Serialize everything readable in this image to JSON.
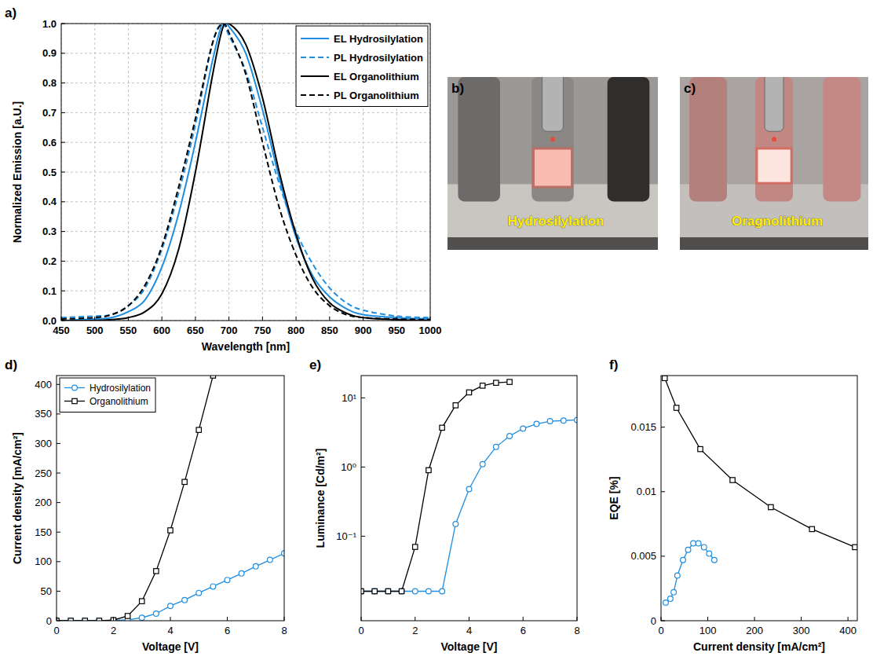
{
  "chart_data": [
    {
      "panel": "a)",
      "type": "line",
      "x_label": "Wavelength [nm]",
      "y_label": "Normalized Emission [a.U.]",
      "x": [
        450,
        500,
        525,
        550,
        575,
        600,
        625,
        650,
        675,
        690,
        700,
        725,
        750,
        775,
        800,
        825,
        850,
        875,
        900,
        950,
        1000
      ],
      "xlim": [
        450,
        1000
      ],
      "xticks": [
        450,
        500,
        550,
        600,
        650,
        700,
        750,
        800,
        850,
        900,
        950,
        1000
      ],
      "ylim": [
        0,
        1
      ],
      "yticks": [
        {
          "value": 0,
          "label": "0.0"
        },
        0.1,
        0.2,
        0.3,
        0.4,
        0.5,
        0.6,
        0.7,
        0.8,
        0.9,
        {
          "value": 1,
          "label": "1.0"
        }
      ],
      "grid": true,
      "legend": "top-right",
      "series": [
        {
          "name": "EL Hydrosilylation",
          "color": "#1f8ee0",
          "line_style": "solid",
          "values": [
            0.0,
            0.005,
            0.01,
            0.03,
            0.07,
            0.18,
            0.36,
            0.6,
            0.87,
            1.0,
            0.99,
            0.9,
            0.71,
            0.48,
            0.28,
            0.15,
            0.08,
            0.04,
            0.02,
            0.01,
            0.005
          ]
        },
        {
          "name": "PL Hydrosilylation",
          "color": "#1f8ee0",
          "line_style": "dashed",
          "values": [
            0.01,
            0.015,
            0.02,
            0.05,
            0.11,
            0.24,
            0.43,
            0.66,
            0.93,
            1.0,
            0.96,
            0.84,
            0.65,
            0.46,
            0.3,
            0.19,
            0.11,
            0.06,
            0.035,
            0.015,
            0.01
          ]
        },
        {
          "name": "EL Organolithium",
          "color": "#000000",
          "line_style": "solid",
          "values": [
            0,
            0,
            0.003,
            0.01,
            0.03,
            0.09,
            0.24,
            0.5,
            0.82,
            0.98,
            1.0,
            0.93,
            0.75,
            0.5,
            0.29,
            0.14,
            0.06,
            0.025,
            0.01,
            0.003,
            0
          ]
        },
        {
          "name": "PL Organolithium",
          "color": "#000000",
          "line_style": "dashed",
          "values": [
            0.005,
            0.01,
            0.02,
            0.05,
            0.12,
            0.25,
            0.45,
            0.68,
            0.93,
            1.0,
            0.97,
            0.83,
            0.6,
            0.38,
            0.22,
            0.11,
            0.05,
            0.02,
            0.01,
            0.005,
            0.003
          ]
        }
      ]
    },
    {
      "panel": "d)",
      "type": "line",
      "x_label": "Voltage [V]",
      "y_label": "Current density [mA/cm²]",
      "xlim": [
        0,
        8
      ],
      "xticks": [
        0,
        2,
        4,
        6,
        8
      ],
      "ylim": [
        0,
        415
      ],
      "yticks": [
        0,
        50,
        100,
        150,
        200,
        250,
        300,
        350,
        400
      ],
      "grid": false,
      "legend": "top-left",
      "series": [
        {
          "name": "Hydrosilylation",
          "color": "#1f8ee0",
          "marker": "circle",
          "line_style": "solid",
          "x": [
            0,
            0.5,
            1,
            1.5,
            2,
            2.5,
            3,
            3.5,
            4,
            4.5,
            5,
            5.5,
            6,
            6.5,
            7,
            7.5,
            8
          ],
          "values": [
            0,
            0,
            0,
            0,
            0.5,
            1.5,
            5,
            12,
            25,
            35,
            47,
            58,
            69,
            80,
            92,
            103,
            114
          ]
        },
        {
          "name": "Organolithium",
          "color": "#000000",
          "marker": "square",
          "line_style": "solid",
          "x": [
            0,
            0.5,
            1,
            1.5,
            2,
            2.5,
            3,
            3.5,
            4,
            4.5,
            5,
            5.5
          ],
          "values": [
            0,
            0,
            0,
            0,
            1,
            8,
            33,
            84,
            153,
            235,
            323,
            415
          ]
        }
      ]
    },
    {
      "panel": "e)",
      "type": "line",
      "x_label": "Voltage [V]",
      "y_label": "Luminance [Cd/m²]",
      "log": "y",
      "xlim": [
        0,
        8
      ],
      "xticks": [
        0,
        2,
        4,
        6,
        8
      ],
      "ylim": [
        0.006,
        21
      ],
      "yticks": [
        {
          "value": 0.1,
          "label": "10⁻¹"
        },
        {
          "value": 1,
          "label": "10⁰"
        },
        {
          "value": 10,
          "label": "10¹"
        }
      ],
      "grid": false,
      "series": [
        {
          "color": "#1f8ee0",
          "marker": "circle",
          "line_style": "solid",
          "x": [
            0,
            0.5,
            1,
            1.5,
            2,
            2.5,
            3,
            3.5,
            4,
            4.5,
            5,
            5.5,
            6,
            6.5,
            7,
            7.5,
            8
          ],
          "values": [
            0.016,
            0.016,
            0.016,
            0.016,
            0.016,
            0.016,
            0.016,
            0.15,
            0.48,
            1.1,
            1.95,
            2.8,
            3.6,
            4.2,
            4.6,
            4.7,
            4.8
          ]
        },
        {
          "color": "#000000",
          "marker": "square",
          "line_style": "solid",
          "x": [
            0,
            0.5,
            1,
            1.5,
            2,
            2.5,
            3,
            3.5,
            4,
            4.5,
            5,
            5.5
          ],
          "values": [
            0.016,
            0.016,
            0.016,
            0.016,
            0.07,
            0.9,
            3.7,
            7.8,
            12,
            15,
            16.5,
            17
          ]
        }
      ]
    },
    {
      "panel": "f)",
      "type": "line",
      "x_label": "Current density [mA/cm²]",
      "y_label": "EQE [%]",
      "xlim": [
        0,
        420
      ],
      "xticks": [
        0,
        100,
        200,
        300,
        400
      ],
      "ylim": [
        0,
        0.019
      ],
      "yticks": [
        0,
        0.005,
        0.01,
        0.015
      ],
      "grid": false,
      "series": [
        {
          "color": "#1f8ee0",
          "marker": "circle",
          "line_style": "solid",
          "x": [
            10,
            20,
            27,
            35,
            47,
            58,
            69,
            80,
            92,
            103,
            114
          ],
          "values": [
            0.0014,
            0.0017,
            0.0022,
            0.0035,
            0.0047,
            0.0055,
            0.006,
            0.006,
            0.0057,
            0.0052,
            0.0047
          ]
        },
        {
          "color": "#000000",
          "marker": "square",
          "line_style": "solid",
          "x": [
            8,
            33,
            84,
            153,
            235,
            323,
            415
          ],
          "values": [
            0.0188,
            0.0165,
            0.0133,
            0.0109,
            0.0088,
            0.0071,
            0.0057
          ]
        }
      ]
    }
  ],
  "photos": [
    {
      "panel": "b)",
      "label": "Hydrosilylation"
    },
    {
      "panel": "c)",
      "label": "Oragnolithium"
    }
  ]
}
